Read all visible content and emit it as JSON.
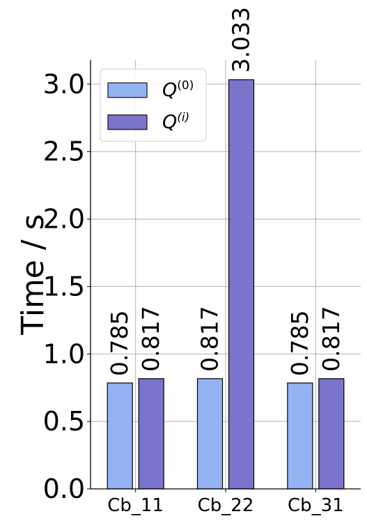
{
  "chart_data": {
    "type": "bar",
    "title": "",
    "xlabel": "",
    "ylabel": "Time / s",
    "categories": [
      "Cb_11",
      "Cb_22",
      "Cb_31"
    ],
    "ylim": [
      0,
      3.18
    ],
    "yticks": [
      "0.0",
      "0.5",
      "1.0",
      "1.5",
      "2.0",
      "2.5",
      "3.0"
    ],
    "grid": true,
    "legend_position": "top-left",
    "series": [
      {
        "name": "Q(0)",
        "legend_base": "Q",
        "legend_sup": "(0)",
        "color": "#93b3f2",
        "values": [
          0.785,
          0.817,
          0.785
        ],
        "labels": [
          "0.785",
          "0.817",
          "0.785"
        ]
      },
      {
        "name": "Q(i)",
        "legend_base": "Q",
        "legend_sup": "(i)",
        "color": "#7a74cc",
        "values": [
          0.817,
          3.033,
          0.817
        ],
        "labels": [
          "0.817",
          "3.033",
          "0.817"
        ]
      }
    ]
  }
}
